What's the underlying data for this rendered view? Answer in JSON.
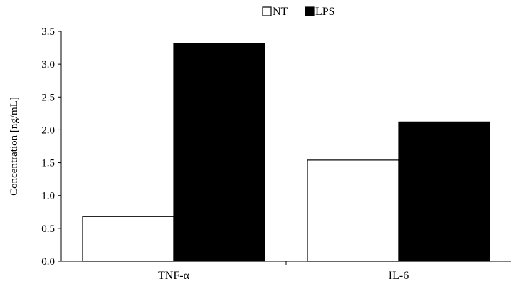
{
  "chart_data": {
    "type": "bar",
    "title": "",
    "xlabel": "",
    "ylabel": "Concentration [ng/mL]",
    "categories": [
      "TNF-α",
      "IL-6"
    ],
    "series": [
      {
        "name": "NT",
        "values": [
          0.68,
          1.54
        ],
        "color": "#ffffff"
      },
      {
        "name": "LPS",
        "values": [
          3.32,
          2.12
        ],
        "color": "#000000"
      }
    ],
    "ylim": [
      0,
      3.5
    ],
    "yticks": [
      "0.0",
      "0.5",
      "1.0",
      "1.5",
      "2.0",
      "2.5",
      "3.0",
      "3.5"
    ],
    "grid": false,
    "legend_position": "top-center"
  }
}
